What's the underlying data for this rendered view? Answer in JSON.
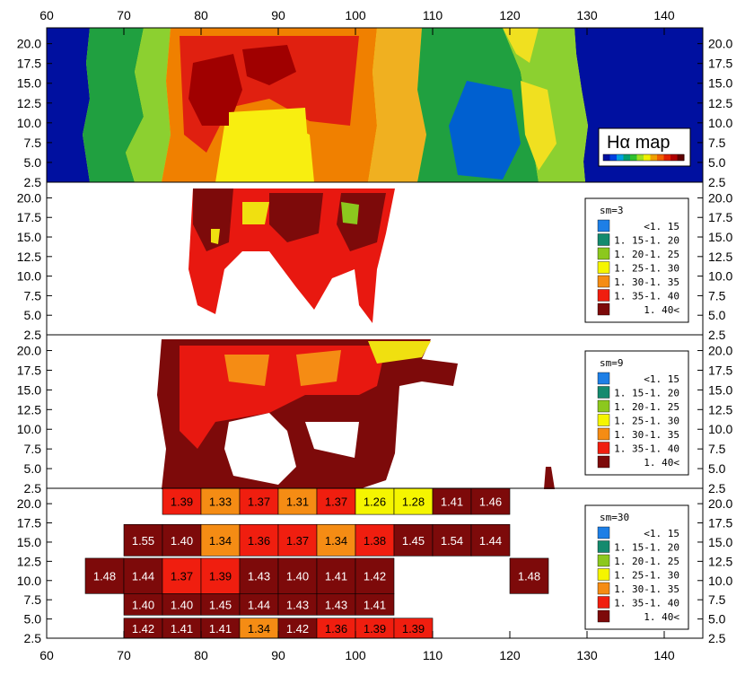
{
  "chart_data": [
    {
      "type": "heatmap",
      "label": "Hα map",
      "xlim": [
        60,
        145
      ],
      "ylim": [
        2.5,
        22
      ],
      "xticks": [
        "60",
        "70",
        "80",
        "90",
        "100",
        "110",
        "120",
        "130",
        "140"
      ],
      "yticks": [
        "2.5",
        "5.0",
        "7.5",
        "10.0",
        "12.5",
        "15.0",
        "17.5",
        "20.0"
      ],
      "colorbar": [
        "#0010a0",
        "#0040e0",
        "#00a0e0",
        "#00a070",
        "#30c030",
        "#a0e020",
        "#f0f000",
        "#f0a000",
        "#f06000",
        "#e02000",
        "#b00000",
        "#600000"
      ]
    },
    {
      "type": "heatmap",
      "legend_title": "sm=3",
      "yticks": [
        "2.5",
        "5.0",
        "7.5",
        "10.0",
        "12.5",
        "15.0",
        "17.5",
        "20.0"
      ]
    },
    {
      "type": "heatmap",
      "legend_title": "sm=9",
      "yticks": [
        "2.5",
        "5.0",
        "7.5",
        "10.0",
        "12.5",
        "15.0",
        "17.5",
        "20.0"
      ]
    },
    {
      "type": "heatmap",
      "legend_title": "sm=30",
      "yticks": [
        "2.5",
        "5.0",
        "7.5",
        "10.0",
        "12.5",
        "15.0",
        "17.5",
        "20.0"
      ],
      "xticks": [
        "60",
        "70",
        "80",
        "90",
        "100",
        "110",
        "120",
        "130",
        "140"
      ],
      "cell_width": 5,
      "cells": [
        {
          "x": 77.5,
          "y": 20.0,
          "v": "1.39"
        },
        {
          "x": 82.5,
          "y": 20.0,
          "v": "1.33"
        },
        {
          "x": 87.5,
          "y": 20.0,
          "v": "1.37"
        },
        {
          "x": 92.5,
          "y": 20.0,
          "v": "1.31"
        },
        {
          "x": 97.5,
          "y": 20.0,
          "v": "1.37"
        },
        {
          "x": 102.5,
          "y": 20.0,
          "v": "1.26"
        },
        {
          "x": 107.5,
          "y": 20.0,
          "v": "1.28"
        },
        {
          "x": 112.5,
          "y": 20.0,
          "v": "1.41"
        },
        {
          "x": 117.5,
          "y": 20.0,
          "v": "1.46"
        },
        {
          "x": 72.5,
          "y": 15.0,
          "v": "1.55"
        },
        {
          "x": 77.5,
          "y": 15.0,
          "v": "1.40"
        },
        {
          "x": 82.5,
          "y": 15.0,
          "v": "1.34"
        },
        {
          "x": 87.5,
          "y": 15.0,
          "v": "1.36"
        },
        {
          "x": 92.5,
          "y": 15.0,
          "v": "1.37"
        },
        {
          "x": 97.5,
          "y": 15.0,
          "v": "1.34"
        },
        {
          "x": 102.5,
          "y": 15.0,
          "v": "1.38"
        },
        {
          "x": 107.5,
          "y": 15.0,
          "v": "1.45"
        },
        {
          "x": 112.5,
          "y": 15.0,
          "v": "1.54"
        },
        {
          "x": 117.5,
          "y": 15.0,
          "v": "1.44"
        },
        {
          "x": 67.5,
          "y": 10.0,
          "v": "1.48"
        },
        {
          "x": 72.5,
          "y": 10.0,
          "v": "1.44"
        },
        {
          "x": 77.5,
          "y": 10.0,
          "v": "1.37"
        },
        {
          "x": 82.5,
          "y": 10.0,
          "v": "1.39"
        },
        {
          "x": 87.5,
          "y": 10.0,
          "v": "1.43"
        },
        {
          "x": 92.5,
          "y": 10.0,
          "v": "1.40"
        },
        {
          "x": 97.5,
          "y": 10.0,
          "v": "1.41"
        },
        {
          "x": 102.5,
          "y": 10.0,
          "v": "1.42"
        },
        {
          "x": 122.5,
          "y": 10.0,
          "v": "1.48"
        },
        {
          "x": 72.5,
          "y": 7.5,
          "v": "1.40"
        },
        {
          "x": 77.5,
          "y": 7.5,
          "v": "1.40"
        },
        {
          "x": 82.5,
          "y": 7.5,
          "v": "1.45"
        },
        {
          "x": 87.5,
          "y": 7.5,
          "v": "1.44"
        },
        {
          "x": 92.5,
          "y": 7.5,
          "v": "1.43"
        },
        {
          "x": 97.5,
          "y": 7.5,
          "v": "1.43"
        },
        {
          "x": 102.5,
          "y": 7.5,
          "v": "1.41"
        },
        {
          "x": 72.5,
          "y": 2.5,
          "v": "1.42"
        },
        {
          "x": 77.5,
          "y": 2.5,
          "v": "1.41"
        },
        {
          "x": 82.5,
          "y": 2.5,
          "v": "1.41"
        },
        {
          "x": 87.5,
          "y": 2.5,
          "v": "1.34"
        },
        {
          "x": 92.5,
          "y": 2.5,
          "v": "1.42"
        },
        {
          "x": 97.5,
          "y": 2.5,
          "v": "1.36"
        },
        {
          "x": 102.5,
          "y": 2.5,
          "v": "1.39"
        },
        {
          "x": 107.5,
          "y": 2.5,
          "v": "1.39"
        }
      ]
    }
  ],
  "legend": {
    "bins": [
      {
        "label": "<1. 15",
        "color": "#1e7fe6"
      },
      {
        "label": "1. 15-1. 20",
        "color": "#148a6e"
      },
      {
        "label": "1. 20-1. 25",
        "color": "#8cc81e"
      },
      {
        "label": "1. 25-1. 30",
        "color": "#f5f500"
      },
      {
        "label": "1. 30-1. 35",
        "color": "#f58c14"
      },
      {
        "label": "1. 35-1. 40",
        "color": "#f01e0f"
      },
      {
        "label": "1. 40<",
        "color": "#7d0a0a"
      }
    ]
  }
}
